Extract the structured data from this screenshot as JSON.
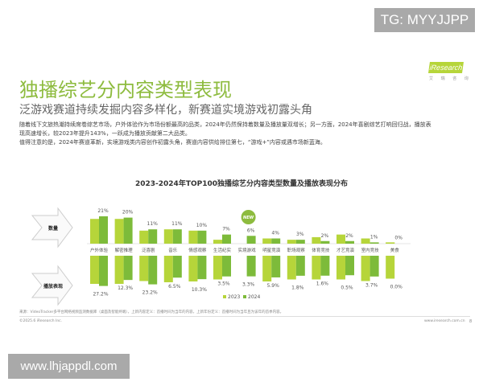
{
  "watermark_top": "TG: MYYJJPP",
  "watermark_bottom": "www.lhjappdl.com",
  "logo": {
    "text": "iResearch",
    "sub": "艾 瑞 咨 询"
  },
  "header": {
    "title": "独播综艺分内容类型表现",
    "subtitle": "泛游戏赛道持续发掘内容多样化，新赛道实境游戏初露头角"
  },
  "body": {
    "para1_line1": "随着线下文旅热潮持续席卷综艺市场，户外体验作为市场份额最高的品类，2024年仍然保持着数量及播放量双增长；另一方面，2024年喜剧综艺打响回归战，播放表",
    "para1_line2": "现高速增长，较2023年提升143%，一跃成为播放贡献第二大品类。",
    "para2": "值得注意的是，2024年赛道革新，实境游戏类内容创作初露头角，赛道内容供给排位第七，“游戏+”内容或遇市场新蓝海。"
  },
  "chart_data": {
    "type": "bar",
    "title": "2023-2024年TOP100独播综艺分内容类型数量及播放表现分布",
    "row_labels": [
      "数量",
      "播放表现"
    ],
    "badge": "NEW",
    "badge_category": "实境游戏",
    "categories": [
      "户外体验",
      "解密推理",
      "泛喜剧",
      "音乐",
      "情感观察",
      "生活纪实",
      "实境游戏",
      "明星竞演",
      "职场观察",
      "体育竞技",
      "才艺竞演",
      "室内竞技",
      "美食"
    ],
    "legend": [
      "2023",
      "2024"
    ],
    "legend_position": "bottom",
    "colors": {
      "2023": "#b6d53a",
      "2024": "#7dbb3a"
    },
    "count_share": {
      "unit": "%",
      "series": [
        {
          "name": "2023",
          "values": [
            19,
            19,
            10,
            11,
            10,
            3,
            0,
            4,
            3,
            5,
            7,
            4,
            1
          ]
        },
        {
          "name": "2024",
          "values": [
            21,
            20,
            11,
            11,
            10,
            7,
            6,
            4,
            3,
            2,
            2,
            1,
            0
          ]
        }
      ],
      "labels": [
        "21%",
        "20%",
        "11%",
        "11%",
        "10%",
        "7%",
        "6%",
        "4%",
        "3%",
        "2%",
        "2%",
        "1%",
        "0%"
      ]
    },
    "play_share": {
      "unit": "%",
      "series": [
        {
          "name": "2023",
          "values": [
            22,
            22,
            15,
            18,
            16,
            11,
            0,
            16,
            11,
            11,
            11,
            15,
            9
          ]
        },
        {
          "name": "2024",
          "values": [
            27.2,
            12.3,
            23.2,
            6.5,
            10.3,
            3.5,
            3.3,
            5.9,
            1.8,
            1.6,
            0.5,
            3.7,
            0.0
          ]
        }
      ],
      "labels": [
        "27.2%",
        "12.3%",
        "23.2%",
        "6.5%",
        "10.3%",
        "3.5%",
        "3.3%",
        "5.9%",
        "1.8%",
        "1.6%",
        "0.5%",
        "3.7%",
        "0.0%"
      ]
    }
  },
  "footer": {
    "source": "来源：VideoTracker多平台网络视频监测数据库（桌面及智能终端），上新内容定义：首播时间为当年的内容，上新年份定义：首播时间为当年且为该年的首季内容。",
    "copyright": "©2025.6 iResearch Inc.",
    "site": "www.iresearch.com.cn",
    "page": "8"
  }
}
